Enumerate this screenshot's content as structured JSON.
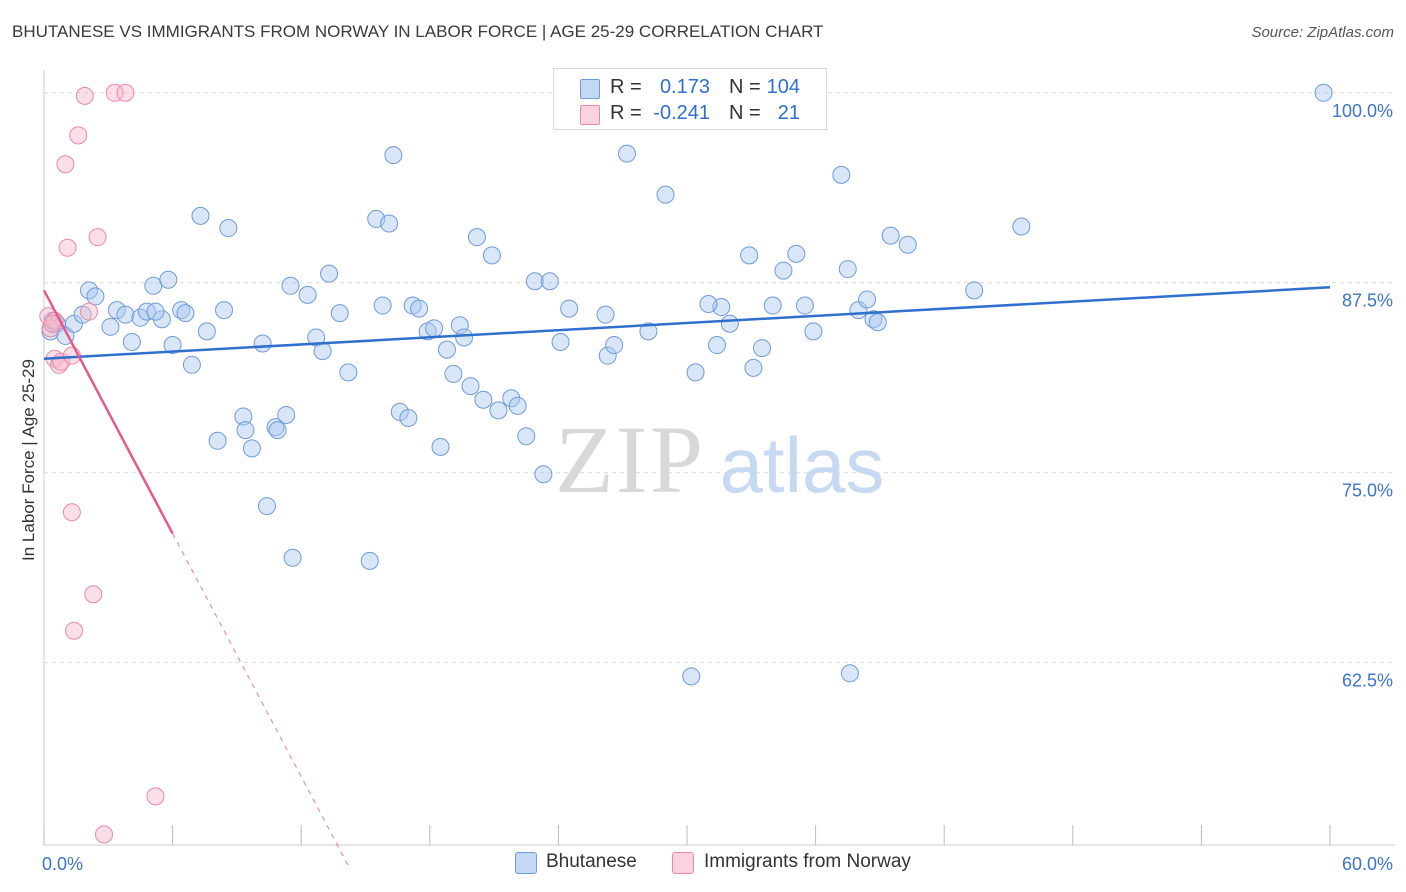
{
  "title": "BHUTANESE VS IMMIGRANTS FROM NORWAY IN LABOR FORCE | AGE 25-29 CORRELATION CHART",
  "source": "Source: ZipAtlas.com",
  "watermark": {
    "zip": "ZIP",
    "atlas": "atlas"
  },
  "legend_top": {
    "rows": [
      {
        "r_label": "R =",
        "r_value": "0.173",
        "n_label": "N =",
        "n_value": "104",
        "color": "#a9c8f0"
      },
      {
        "r_label": "R =",
        "r_value": "-0.241",
        "n_label": "N =",
        "n_value": "21",
        "color": "#f6b8cb"
      }
    ]
  },
  "legend_bottom": [
    {
      "label": "Bhutanese",
      "color": "#a9c8f0"
    },
    {
      "label": "Immigrants from Norway",
      "color": "#f6b8cb"
    }
  ],
  "chart_data": {
    "type": "scatter",
    "xlabel": "",
    "ylabel": "In Labor Force | Age 25-29",
    "xlim": [
      0,
      60
    ],
    "ylim": [
      50.5,
      101.5
    ],
    "x_tick_labels": [
      {
        "value": 0,
        "label": "0.0%"
      },
      {
        "value": 60,
        "label": "60.0%"
      }
    ],
    "y_tick_labels": [
      {
        "value": 100,
        "label": "100.0%"
      },
      {
        "value": 87.5,
        "label": "87.5%"
      },
      {
        "value": 75,
        "label": "75.0%"
      },
      {
        "value": 62.5,
        "label": "62.5%"
      }
    ],
    "x_minor_ticks": [
      0,
      6,
      12,
      18,
      24,
      30,
      36,
      42,
      48,
      54,
      60
    ],
    "grid": "horizontal dashed",
    "series": [
      {
        "name": "Bhutanese",
        "color": "#a9c8f0",
        "stroke": "#6f9bd8",
        "trend": {
          "x": [
            0,
            60
          ],
          "y": [
            82.5,
            87.2
          ],
          "color": "#2f6fce"
        },
        "points": [
          [
            0.3,
            84.3
          ],
          [
            0.6,
            84.8
          ],
          [
            1.0,
            84.0
          ],
          [
            1.4,
            84.8
          ],
          [
            1.8,
            85.4
          ],
          [
            2.1,
            87.0
          ],
          [
            2.4,
            86.6
          ],
          [
            3.1,
            84.6
          ],
          [
            3.4,
            85.7
          ],
          [
            3.8,
            85.4
          ],
          [
            4.1,
            83.6
          ],
          [
            4.5,
            85.2
          ],
          [
            4.8,
            85.6
          ],
          [
            5.1,
            87.3
          ],
          [
            5.5,
            85.1
          ],
          [
            5.8,
            87.7
          ],
          [
            6.0,
            83.4
          ],
          [
            6.4,
            85.7
          ],
          [
            6.6,
            85.5
          ],
          [
            6.9,
            82.1
          ],
          [
            7.3,
            91.9
          ],
          [
            7.6,
            84.3
          ],
          [
            8.1,
            77.1
          ],
          [
            8.4,
            85.7
          ],
          [
            8.6,
            91.1
          ],
          [
            9.3,
            78.7
          ],
          [
            9.4,
            77.8
          ],
          [
            9.7,
            76.6
          ],
          [
            10.2,
            83.5
          ],
          [
            10.4,
            72.8
          ],
          [
            10.8,
            78.0
          ],
          [
            10.9,
            77.8
          ],
          [
            11.3,
            78.8
          ],
          [
            11.5,
            87.3
          ],
          [
            11.6,
            69.4
          ],
          [
            12.3,
            86.7
          ],
          [
            12.7,
            83.9
          ],
          [
            13.0,
            83.0
          ],
          [
            13.3,
            88.1
          ],
          [
            13.8,
            85.5
          ],
          [
            14.2,
            81.6
          ],
          [
            15.2,
            69.2
          ],
          [
            15.5,
            91.7
          ],
          [
            15.8,
            86.0
          ],
          [
            16.1,
            91.4
          ],
          [
            16.3,
            95.9
          ],
          [
            16.6,
            79.0
          ],
          [
            17.0,
            78.6
          ],
          [
            17.2,
            86.0
          ],
          [
            17.5,
            85.8
          ],
          [
            17.9,
            84.3
          ],
          [
            18.2,
            84.5
          ],
          [
            18.5,
            76.7
          ],
          [
            18.8,
            83.1
          ],
          [
            19.1,
            81.5
          ],
          [
            19.4,
            84.7
          ],
          [
            19.6,
            83.9
          ],
          [
            19.9,
            80.7
          ],
          [
            20.2,
            90.5
          ],
          [
            20.5,
            79.8
          ],
          [
            20.9,
            89.3
          ],
          [
            21.2,
            79.1
          ],
          [
            21.8,
            79.9
          ],
          [
            22.1,
            79.4
          ],
          [
            22.5,
            77.4
          ],
          [
            22.9,
            87.6
          ],
          [
            23.3,
            74.9
          ],
          [
            23.6,
            87.6
          ],
          [
            24.1,
            83.6
          ],
          [
            24.5,
            85.8
          ],
          [
            26.3,
            82.7
          ],
          [
            26.6,
            83.4
          ],
          [
            26.2,
            85.4
          ],
          [
            27.2,
            96.0
          ],
          [
            28.2,
            84.3
          ],
          [
            29.0,
            93.3
          ],
          [
            30.2,
            61.6
          ],
          [
            30.4,
            81.6
          ],
          [
            31.4,
            83.4
          ],
          [
            31.6,
            85.9
          ],
          [
            32.0,
            84.8
          ],
          [
            32.9,
            89.3
          ],
          [
            33.1,
            81.9
          ],
          [
            33.5,
            83.2
          ],
          [
            34.0,
            86.0
          ],
          [
            34.5,
            88.3
          ],
          [
            35.1,
            89.4
          ],
          [
            35.5,
            86.0
          ],
          [
            35.9,
            84.3
          ],
          [
            37.2,
            94.6
          ],
          [
            37.5,
            88.4
          ],
          [
            37.6,
            61.8
          ],
          [
            38.0,
            85.7
          ],
          [
            38.4,
            86.4
          ],
          [
            38.7,
            85.1
          ],
          [
            38.9,
            84.9
          ],
          [
            39.5,
            90.6
          ],
          [
            40.3,
            90.0
          ],
          [
            43.4,
            87.0
          ],
          [
            45.6,
            91.2
          ],
          [
            59.7,
            100.0
          ],
          [
            0.4,
            85.0
          ],
          [
            5.2,
            85.6
          ],
          [
            31.0,
            86.1
          ]
        ]
      },
      {
        "name": "Immigrants from Norway",
        "color": "#f6b8cb",
        "stroke": "#e98aa7",
        "trend": {
          "x": [
            0,
            6
          ],
          "y": [
            87.0,
            71.0
          ],
          "x_dashed_end": 14.2,
          "color": "#e25c8b"
        },
        "points": [
          [
            0.2,
            85.3
          ],
          [
            0.3,
            84.5
          ],
          [
            0.5,
            85.0
          ],
          [
            0.5,
            82.5
          ],
          [
            0.7,
            82.1
          ],
          [
            0.8,
            82.3
          ],
          [
            1.0,
            95.3
          ],
          [
            1.1,
            89.8
          ],
          [
            1.3,
            72.4
          ],
          [
            1.3,
            82.7
          ],
          [
            1.4,
            64.6
          ],
          [
            1.6,
            97.2
          ],
          [
            1.9,
            99.8
          ],
          [
            2.1,
            85.6
          ],
          [
            2.3,
            67.0
          ],
          [
            2.5,
            90.5
          ],
          [
            2.8,
            51.2
          ],
          [
            3.3,
            100.0
          ],
          [
            3.8,
            100.0
          ],
          [
            5.2,
            53.7
          ],
          [
            0.4,
            84.8
          ]
        ]
      }
    ]
  }
}
